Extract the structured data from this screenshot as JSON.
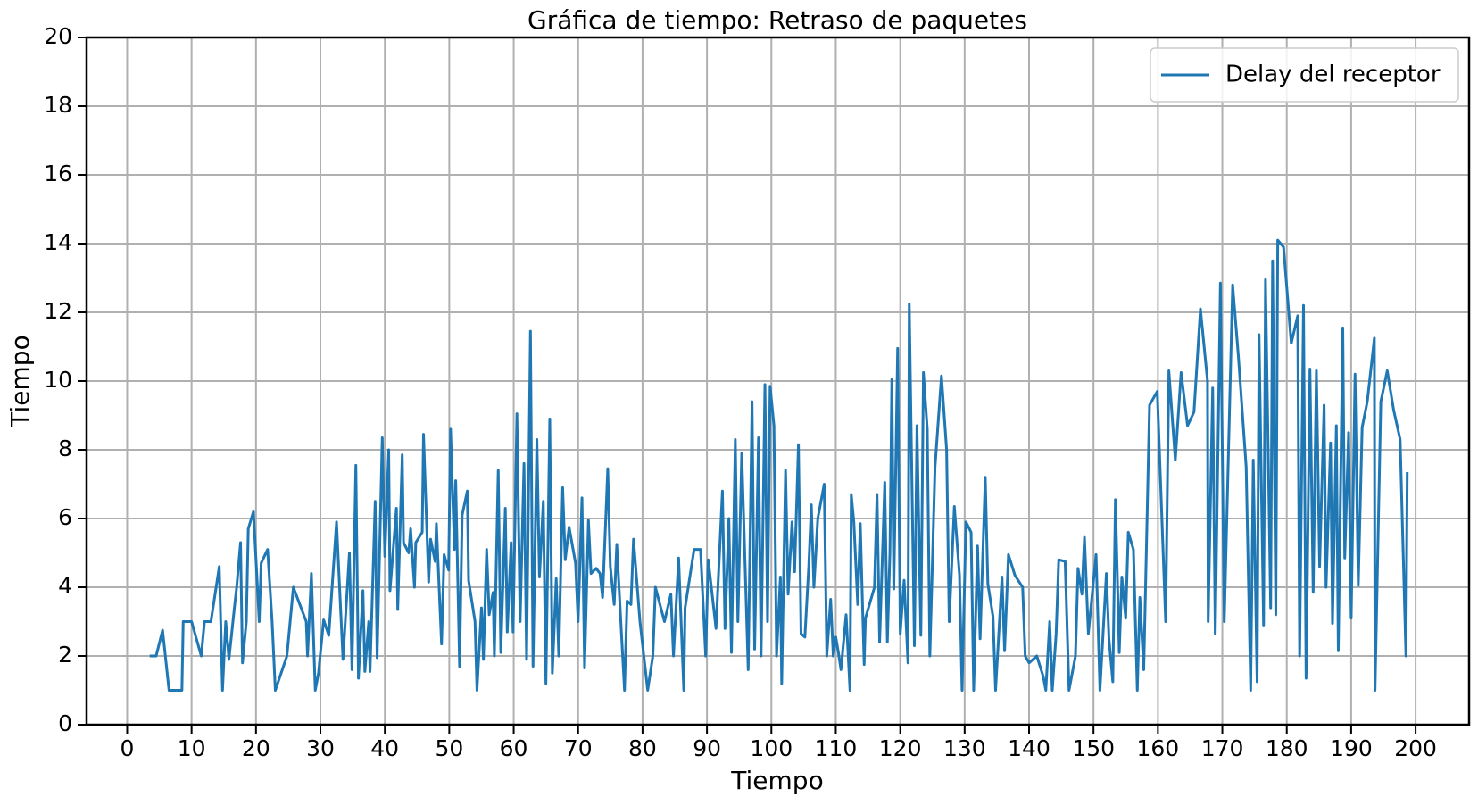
{
  "chart_data": {
    "type": "line",
    "title": "Gráfica de tiempo: Retraso de paquetes",
    "xlabel": "Tiempo",
    "ylabel": "Tiempo",
    "xlim": [
      -6.3,
      208.3
    ],
    "ylim": [
      0,
      20
    ],
    "xticks": [
      0,
      10,
      20,
      30,
      40,
      50,
      60,
      70,
      80,
      90,
      100,
      110,
      120,
      130,
      140,
      150,
      160,
      170,
      180,
      190,
      200
    ],
    "yticks": [
      0,
      2,
      4,
      6,
      8,
      10,
      12,
      14,
      16,
      18,
      20
    ],
    "grid": true,
    "legend": "upper right",
    "x": [
      3.5,
      4.5,
      5.5,
      6.5,
      8.5,
      8.7,
      10,
      11.5,
      12,
      13,
      14.3,
      14.8,
      15.3,
      15.8,
      16.7,
      17,
      17.6,
      17.9,
      18.5,
      18.8,
      19.6,
      20,
      20.5,
      20.8,
      21.8,
      22.5,
      23,
      24.8,
      25.8,
      27.8,
      28,
      28.6,
      29.2,
      29.7,
      30.5,
      31.3,
      32.5,
      33.5,
      34.5,
      34.9,
      35.5,
      35.9,
      36.6,
      36.9,
      37.5,
      37.7,
      38.5,
      38.8,
      39.6,
      40,
      40.6,
      40.8,
      41.8,
      42,
      42.7,
      42.9,
      43.7,
      44,
      44.6,
      44.8,
      45.8,
      46,
      46.8,
      47.1,
      47.8,
      48,
      48.8,
      49.2,
      49.9,
      50.2,
      50.8,
      51,
      51.6,
      52,
      52.8,
      53,
      54,
      54.3,
      55,
      55.3,
      55.8,
      56.2,
      56.8,
      57,
      57.6,
      58,
      58.7,
      59,
      59.6,
      59.9,
      60.5,
      61,
      61.6,
      62,
      62.6,
      63,
      63.6,
      64,
      64.6,
      65,
      65.6,
      66,
      66.6,
      67,
      67.6,
      68,
      68.6,
      69.6,
      70,
      70.6,
      71,
      71.6,
      72,
      72.8,
      73.4,
      73.8,
      74.6,
      75,
      75.6,
      76,
      76.6,
      77.2,
      77.6,
      78.2,
      78.6,
      79.6,
      80.8,
      81.6,
      82,
      83.4,
      84.4,
      84.8,
      85.6,
      86.4,
      86.6,
      88,
      89,
      89.8,
      90.2,
      91.4,
      92.4,
      92.8,
      93.4,
      93.8,
      94.4,
      94.8,
      95.4,
      96.4,
      97,
      97.4,
      98,
      98.4,
      99,
      99.4,
      99.8,
      100.4,
      100.8,
      101.4,
      101.6,
      102.2,
      102.6,
      103.2,
      103.6,
      104.2,
      104.6,
      105.2,
      105.8,
      106.2,
      106.6,
      107.2,
      108.2,
      108.6,
      109.2,
      109.6,
      110,
      110.4,
      110.8,
      111.6,
      112.2,
      112.4,
      112.8,
      113.4,
      113.8,
      114.4,
      114.6,
      116,
      116.4,
      116.8,
      117.6,
      118,
      118.4,
      118.7,
      119,
      119.6,
      120,
      120.6,
      121.2,
      121.4,
      122.2,
      122.6,
      123.2,
      123.6,
      124.2,
      124.6,
      125.4,
      126.4,
      127.2,
      127.6,
      128.4,
      129.2,
      129.6,
      130.2,
      131,
      131.4,
      132,
      132.4,
      133.2,
      133.6,
      134.4,
      134.8,
      135.8,
      136.2,
      136.8,
      137.8,
      139,
      139.4,
      140,
      141.2,
      142.2,
      142.6,
      143.2,
      143.6,
      144.2,
      144.6,
      145.6,
      146.2,
      147.2,
      147.6,
      148.2,
      148.6,
      149.2,
      150.4,
      151,
      152,
      152.4,
      153,
      153.4,
      154,
      154.4,
      155,
      155.4,
      156.2,
      156.8,
      157.2,
      157.8,
      158.7,
      159.9,
      161.2,
      161.7,
      162.7,
      163.6,
      164.6,
      165.6,
      166.6,
      167.7,
      167.8,
      168.5,
      168.9,
      169.7,
      170.3,
      171.6,
      172.5,
      173.7,
      174.4,
      174.8,
      175.4,
      175.7,
      176.4,
      176.7,
      177.5,
      177.8,
      178.3,
      178.6,
      179.5,
      180.7,
      181.7,
      182,
      182.6,
      183,
      183.6,
      184.1,
      184.6,
      185.1,
      185.8,
      186.1,
      186.8,
      187.1,
      187.7,
      188,
      188.7,
      189,
      189.6,
      190,
      190.6,
      191.1,
      191.7,
      192.5,
      193.6,
      193.7,
      194.6,
      195.6,
      196.6,
      197.6,
      198.5,
      198.7
    ],
    "series": [
      {
        "name": "Delay del receptor",
        "color": "#1f77b4",
        "values": [
          2,
          2,
          2.75,
          1,
          1,
          3,
          3,
          2,
          3,
          3,
          4.6,
          1,
          3,
          1.9,
          3.5,
          4,
          5.3,
          1.8,
          3,
          5.7,
          6.2,
          4.8,
          3,
          4.7,
          5.1,
          3,
          1,
          2,
          4,
          3,
          2,
          4.4,
          1,
          1.5,
          3.05,
          2.6,
          5.9,
          1.9,
          5,
          1.6,
          7.55,
          1.35,
          3.9,
          1.55,
          3,
          1.55,
          6.5,
          1.95,
          8.35,
          4.9,
          8,
          3.9,
          6.3,
          3.35,
          7.85,
          5.3,
          5,
          5.7,
          4,
          5.3,
          5.6,
          8.45,
          4.15,
          5.4,
          4.75,
          5.85,
          2.35,
          4.95,
          4.5,
          8.6,
          5.1,
          7.1,
          1.7,
          6.1,
          6.8,
          4.2,
          3,
          1,
          3.4,
          1.9,
          5.1,
          3.2,
          3.85,
          2,
          7.4,
          2.1,
          6.3,
          2.7,
          5.3,
          2.7,
          9.05,
          3,
          7.6,
          1.9,
          11.45,
          1.7,
          8.3,
          4.3,
          6.5,
          1.2,
          8.9,
          1.5,
          4.25,
          2,
          6.9,
          4.8,
          5.75,
          4.7,
          3,
          6.6,
          1.65,
          5.95,
          4.4,
          4.55,
          4.4,
          3.7,
          7.45,
          4.6,
          3.5,
          5.25,
          3.1,
          1,
          3.6,
          3.5,
          5.4,
          3,
          1,
          2,
          4,
          3,
          3.8,
          2,
          4.85,
          1,
          3.4,
          5.1,
          5.1,
          2,
          4.8,
          2.8,
          6.8,
          2.8,
          6,
          2.1,
          8.3,
          3,
          7.9,
          1.6,
          9.4,
          2.2,
          8.35,
          2,
          9.9,
          3,
          9.85,
          8.7,
          2,
          4.3,
          1.2,
          7.4,
          3.8,
          5.9,
          4.45,
          8.15,
          2.65,
          2.55,
          4.6,
          6.4,
          4,
          6,
          7,
          2,
          3.65,
          2,
          2.55,
          2.1,
          1.6,
          3.2,
          1,
          6.7,
          5.9,
          3.5,
          5.85,
          1.75,
          3.1,
          4,
          6.7,
          2.4,
          7.05,
          2.4,
          5,
          10.05,
          3.95,
          10.95,
          2.65,
          4.2,
          1.8,
          12.25,
          2.3,
          8.7,
          2.6,
          10.25,
          8.6,
          2,
          7.5,
          10.15,
          8,
          3,
          6.35,
          4.35,
          1,
          5.9,
          5.6,
          1,
          5.2,
          2.5,
          7.2,
          4.1,
          3.15,
          1,
          4.3,
          2.15,
          4.95,
          4.35,
          4,
          2,
          1.8,
          2,
          1.4,
          1,
          3,
          1,
          2.65,
          4.8,
          4.75,
          1,
          2,
          4.55,
          3.8,
          5.45,
          2.65,
          4.95,
          1,
          4.4,
          2.5,
          1.25,
          6.55,
          2.1,
          4.3,
          3.1,
          5.6,
          5.1,
          1,
          3.7,
          1.6,
          9.3,
          9.7,
          3,
          10.3,
          7.7,
          10.25,
          8.7,
          9.1,
          12.1,
          10,
          3,
          9.8,
          2.65,
          12.85,
          3,
          12.8,
          10.7,
          7.5,
          1,
          7.7,
          1.25,
          11.35,
          2.9,
          12.95,
          3.4,
          13.5,
          3.2,
          14.1,
          13.9,
          11.1,
          11.9,
          2,
          12.2,
          1.35,
          10.35,
          3.85,
          10.3,
          4.6,
          9.3,
          4,
          8.2,
          2.95,
          8.7,
          2.15,
          11.55,
          4.85,
          8.5,
          3.1,
          10.2,
          4.05,
          8.65,
          9.4,
          11.25,
          1,
          9.4,
          10.3,
          9.15,
          8.3,
          2,
          7.35
        ]
      }
    ]
  }
}
